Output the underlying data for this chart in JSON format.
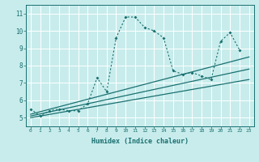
{
  "title": "",
  "xlabel": "Humidex (Indice chaleur)",
  "xlim": [
    -0.5,
    23.5
  ],
  "ylim": [
    4.5,
    11.5
  ],
  "xticks": [
    0,
    1,
    2,
    3,
    4,
    5,
    6,
    7,
    8,
    9,
    10,
    11,
    12,
    13,
    14,
    15,
    16,
    17,
    18,
    19,
    20,
    21,
    22,
    23
  ],
  "yticks": [
    5,
    6,
    7,
    8,
    9,
    10,
    11
  ],
  "bg_color": "#c8ecec",
  "grid_color": "#ffffff",
  "line_color": "#1a7070",
  "series": [
    {
      "x": [
        0,
        1,
        2,
        3,
        4,
        5,
        6,
        7,
        8,
        9,
        10,
        11,
        12,
        13,
        14,
        15,
        16,
        17,
        18,
        19,
        20,
        21,
        22
      ],
      "y": [
        5.5,
        5.1,
        5.4,
        5.5,
        5.4,
        5.4,
        5.8,
        7.3,
        6.5,
        9.6,
        10.8,
        10.8,
        10.2,
        10.0,
        9.6,
        7.7,
        7.5,
        7.6,
        7.4,
        7.2,
        9.4,
        9.9,
        8.9
      ],
      "style": "dotted",
      "marker": true
    },
    {
      "x": [
        0,
        23
      ],
      "y": [
        5.2,
        8.5
      ],
      "style": "solid",
      "marker": false
    },
    {
      "x": [
        0,
        23
      ],
      "y": [
        5.1,
        7.8
      ],
      "style": "solid",
      "marker": false
    },
    {
      "x": [
        0,
        23
      ],
      "y": [
        5.0,
        7.2
      ],
      "style": "solid",
      "marker": false
    }
  ]
}
